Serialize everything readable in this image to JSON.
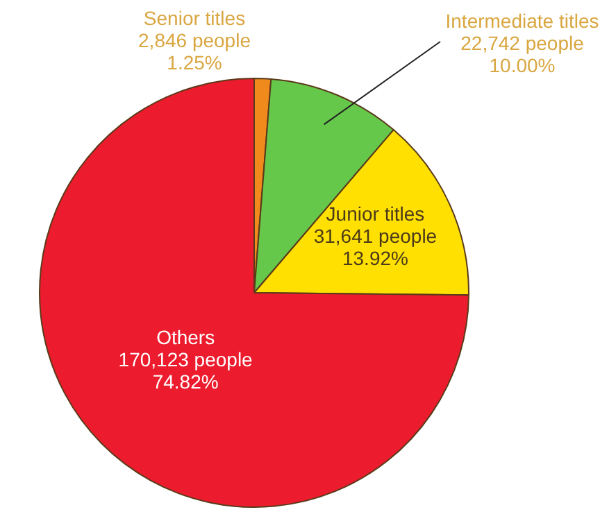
{
  "chart_data": {
    "type": "pie",
    "categories": [
      "Senior titles",
      "Intermediate titles",
      "Junior titles",
      "Others"
    ],
    "values": [
      2846,
      22742,
      31641,
      170123
    ],
    "colors": [
      "#f08a1c",
      "#66c84a",
      "#ffe000",
      "#ec1c2e"
    ],
    "value_labels": [
      "2,846 people\n1.25%",
      "22,742 people\n10.00%",
      "31,641 people\n13.92%",
      "170,123 people\n74.82%"
    ],
    "legend": false
  }
}
